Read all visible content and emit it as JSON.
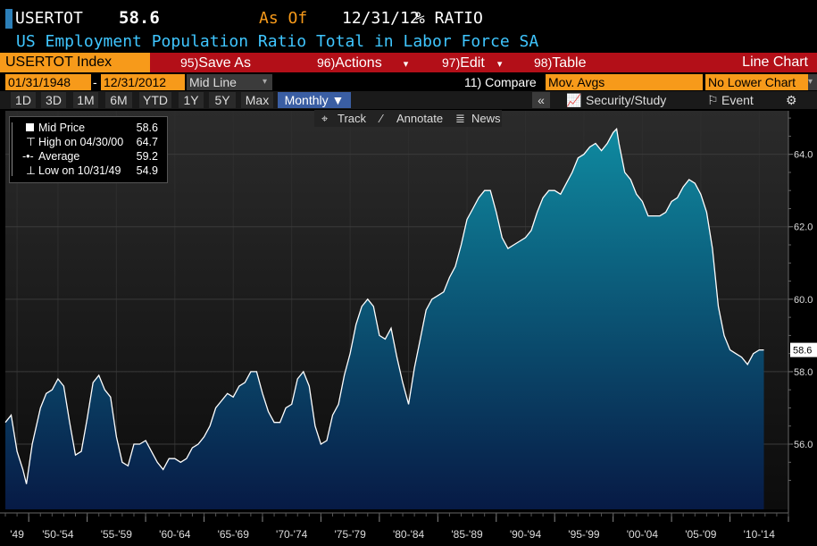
{
  "header": {
    "ticker": "USERTOT",
    "price": "58.6",
    "as_of_label": "As Of",
    "as_of_date": "12/31/12",
    "unit": "% RATIO",
    "description": "US Employment Population Ratio Total in Labor Force SA"
  },
  "toolbar": {
    "security": "USERTOT Index",
    "menus": [
      {
        "num": "95)",
        "label": "Save As"
      },
      {
        "num": "96)",
        "label": "Actions"
      },
      {
        "num": "97)",
        "label": "Edit"
      },
      {
        "num": "98)",
        "label": "Table"
      }
    ],
    "chart_type": "Line Chart"
  },
  "range": {
    "start": "01/31/1948",
    "sep": "-",
    "end": "12/31/2012",
    "field": "Mid Line",
    "compare": "11) Compare",
    "mov_avgs": "Mov. Avgs",
    "lower": "No Lower Chart"
  },
  "periods": [
    "1D",
    "3D",
    "1M",
    "6M",
    "YTD",
    "1Y",
    "5Y",
    "Max"
  ],
  "frequency": "Monthly ▼",
  "right_tools": {
    "collapse": "«",
    "security_study": "Security/Study",
    "event": "Event",
    "settings": "⚙"
  },
  "chart_tools": {
    "track": "Track",
    "annotate": "Annotate",
    "news": "News"
  },
  "legend": [
    {
      "label": "Mid Price",
      "value": "58.6"
    },
    {
      "label": "High on 04/30/00",
      "value": "64.7"
    },
    {
      "label": "Average",
      "value": "59.2"
    },
    {
      "label": "Low on 10/31/49",
      "value": "54.9"
    }
  ],
  "colors": {
    "accent": "#f79a1a",
    "toolbar": "#b30f18",
    "line": "#ffffff",
    "area_top": "#0f7f95",
    "area_bottom": "#0a1f4a",
    "title_blue": "#3fc6ff"
  },
  "chart_data": {
    "type": "area",
    "title": "US Employment Population Ratio Total in Labor Force SA",
    "ylabel": "% RATIO",
    "ylim": [
      54.2,
      65.2
    ],
    "yticks": [
      56.0,
      58.0,
      60.0,
      62.0,
      64.0
    ],
    "ytick_labels": [
      "56.0",
      "58.0",
      "60.0",
      "62.0",
      "64.0"
    ],
    "xlim": [
      1948.0,
      2015.0
    ],
    "xtick_labels": [
      "'49",
      "'50-'54",
      "'55-'59",
      "'60-'64",
      "'65-'69",
      "'70-'74",
      "'75-'79",
      "'80-'84",
      "'85-'89",
      "'90-'94",
      "'95-'99",
      "'00-'04",
      "'05-'09",
      "'10-'14"
    ],
    "xtick_positions": [
      1949,
      1952.5,
      1957.5,
      1962.5,
      1967.5,
      1972.5,
      1977.5,
      1982.5,
      1987.5,
      1992.5,
      1997.5,
      2002.5,
      2007.5,
      2012.5
    ],
    "last_value_label": "58.6",
    "grid": true,
    "series": [
      {
        "x": [
          1948.0,
          1948.5,
          1949.0,
          1949.5,
          1949.8,
          1950.3,
          1951.0,
          1951.5,
          1952.0,
          1952.5,
          1953.0,
          1953.5,
          1954.0,
          1954.5,
          1955.0,
          1955.5,
          1956.0,
          1956.5,
          1957.0,
          1957.5,
          1958.0,
          1958.5,
          1959.0,
          1959.5,
          1960.0,
          1960.5,
          1961.0,
          1961.5,
          1962.0,
          1962.5,
          1963.0,
          1963.5,
          1964.0,
          1964.5,
          1965.0,
          1965.5,
          1966.0,
          1966.5,
          1967.0,
          1967.5,
          1968.0,
          1968.5,
          1969.0,
          1969.5,
          1970.0,
          1970.5,
          1971.0,
          1971.5,
          1972.0,
          1972.5,
          1973.0,
          1973.5,
          1974.0,
          1974.5,
          1975.0,
          1975.5,
          1976.0,
          1976.5,
          1977.0,
          1977.5,
          1978.0,
          1978.5,
          1979.0,
          1979.5,
          1980.0,
          1980.5,
          1981.0,
          1981.5,
          1982.0,
          1982.5,
          1983.0,
          1983.5,
          1984.0,
          1984.5,
          1985.0,
          1985.5,
          1986.0,
          1986.5,
          1987.0,
          1987.5,
          1988.0,
          1988.5,
          1989.0,
          1989.5,
          1990.0,
          1990.5,
          1991.0,
          1991.5,
          1992.0,
          1992.5,
          1993.0,
          1993.5,
          1994.0,
          1994.5,
          1995.0,
          1995.5,
          1996.0,
          1996.5,
          1997.0,
          1997.5,
          1998.0,
          1998.5,
          1999.0,
          1999.5,
          2000.0,
          2000.3,
          2000.5,
          2001.0,
          2001.5,
          2002.0,
          2002.5,
          2003.0,
          2003.5,
          2004.0,
          2004.5,
          2005.0,
          2005.5,
          2006.0,
          2006.5,
          2007.0,
          2007.5,
          2008.0,
          2008.5,
          2009.0,
          2009.5,
          2010.0,
          2010.5,
          2011.0,
          2011.5,
          2012.0,
          2012.5,
          2012.9
        ],
        "y": [
          56.6,
          56.8,
          55.8,
          55.3,
          54.9,
          56.0,
          57.0,
          57.4,
          57.5,
          57.8,
          57.6,
          56.6,
          55.7,
          55.8,
          56.7,
          57.7,
          57.9,
          57.5,
          57.3,
          56.2,
          55.5,
          55.4,
          56.0,
          56.0,
          56.1,
          55.8,
          55.5,
          55.3,
          55.6,
          55.6,
          55.5,
          55.6,
          55.9,
          56.0,
          56.2,
          56.5,
          57.0,
          57.2,
          57.4,
          57.3,
          57.6,
          57.7,
          58.0,
          58.0,
          57.4,
          56.9,
          56.6,
          56.6,
          57.0,
          57.1,
          57.8,
          58.0,
          57.6,
          56.5,
          56.0,
          56.1,
          56.8,
          57.1,
          57.9,
          58.5,
          59.3,
          59.8,
          60.0,
          59.8,
          59.0,
          58.9,
          59.2,
          58.4,
          57.7,
          57.1,
          58.1,
          58.9,
          59.7,
          60.0,
          60.1,
          60.2,
          60.6,
          60.9,
          61.5,
          62.2,
          62.5,
          62.8,
          63.0,
          63.0,
          62.4,
          61.7,
          61.4,
          61.5,
          61.6,
          61.7,
          61.9,
          62.4,
          62.8,
          63.0,
          63.0,
          62.9,
          63.2,
          63.5,
          63.9,
          64.0,
          64.2,
          64.3,
          64.1,
          64.3,
          64.6,
          64.7,
          64.3,
          63.5,
          63.3,
          62.9,
          62.7,
          62.3,
          62.3,
          62.3,
          62.4,
          62.7,
          62.8,
          63.1,
          63.3,
          63.2,
          62.9,
          62.4,
          61.4,
          59.8,
          59.0,
          58.6,
          58.5,
          58.4,
          58.2,
          58.5,
          58.6,
          58.6
        ]
      }
    ]
  }
}
